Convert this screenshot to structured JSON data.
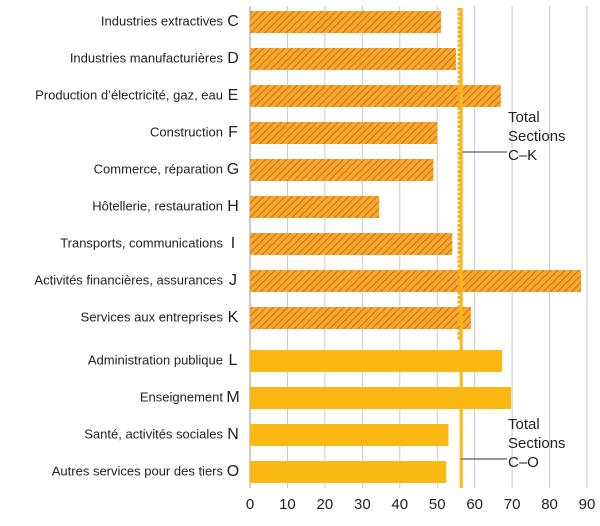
{
  "chart_data": {
    "type": "bar",
    "orientation": "horizontal",
    "categories": [
      "Industries extractives",
      "Industries manufacturières",
      "Production d’électricité, gaz, eau",
      "Construction",
      "Commerce, réparation",
      "Hôtellerie, restauration",
      "Transports, communications",
      "Activités financières, assurances",
      "Services aux entreprises",
      "Administration publique",
      "Enseignement",
      "Santé, activités sociales",
      "Autres services pour des tiers"
    ],
    "sections": [
      "C",
      "D",
      "E",
      "F",
      "G",
      "H",
      "I",
      "J",
      "K",
      "L",
      "M",
      "N",
      "O"
    ],
    "values": [
      51,
      55,
      67,
      50,
      49,
      34.5,
      54,
      88.4,
      59,
      67.3,
      69.7,
      53,
      52.4
    ],
    "hatched": [
      true,
      true,
      true,
      true,
      true,
      true,
      true,
      true,
      true,
      false,
      false,
      false,
      false
    ],
    "colors": {
      "hatched": "#f5a833",
      "stripe": "#d87000",
      "solid": "#fbb812",
      "grid": "#c8c8c8"
    },
    "xlim": [
      0,
      90
    ],
    "xticks": [
      0,
      10,
      20,
      30,
      40,
      50,
      60,
      70,
      80,
      90
    ],
    "grid": true,
    "annotations": [
      {
        "text": [
          "Total",
          "Sections",
          "C–K"
        ],
        "value": 56.1,
        "style": "dotted",
        "color": "#f5a833"
      },
      {
        "text": [
          "Total",
          "Sections",
          "C–O"
        ],
        "value": 56.4,
        "style": "solid",
        "color": "#fbb812"
      }
    ]
  }
}
